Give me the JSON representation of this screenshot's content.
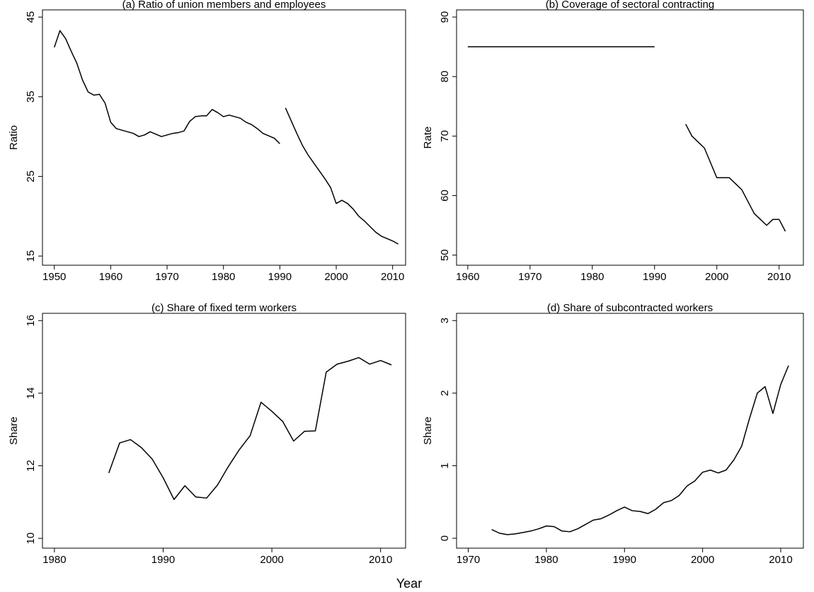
{
  "xlabel": "Year",
  "chart_data": [
    {
      "type": "line",
      "title": "(a) Ratio of union members and employees",
      "ylabel": "Ratio",
      "xlim": [
        1947.9,
        2012.3
      ],
      "ylim": [
        13.85,
        45.9
      ],
      "xticks": [
        1950,
        1960,
        1970,
        1980,
        1990,
        2000,
        2010
      ],
      "yticks": [
        15,
        25,
        35,
        45
      ],
      "series": [
        {
          "color": "#000000",
          "x": [
            1950,
            1951,
            1952,
            1953,
            1954,
            1955,
            1956,
            1957,
            1958,
            1959,
            1960,
            1961,
            1962,
            1963,
            1964,
            1965,
            1966,
            1967,
            1968,
            1969,
            1970,
            1971,
            1972,
            1973,
            1974,
            1975,
            1976,
            1977,
            1978,
            1979,
            1980,
            1981,
            1982,
            1983,
            1984,
            1985,
            1986,
            1987,
            1988,
            1989,
            1990
          ],
          "values": [
            41.2,
            43.3,
            42.3,
            40.7,
            39.2,
            37.1,
            35.6,
            35.2,
            35.3,
            34.2,
            31.8,
            31.0,
            30.8,
            30.6,
            30.4,
            30.0,
            30.2,
            30.6,
            30.3,
            30.0,
            30.2,
            30.4,
            30.5,
            30.7,
            31.9,
            32.5,
            32.6,
            32.6,
            33.4,
            33.0,
            32.5,
            32.7,
            32.5,
            32.3,
            31.8,
            31.5,
            31.0,
            30.4,
            30.1,
            29.8,
            29.1
          ]
        },
        {
          "color": "#000000",
          "x": [
            1991,
            1992,
            1993,
            1994,
            1995,
            1996,
            1997,
            1998,
            1999,
            2000,
            2001,
            2002,
            2003,
            2004,
            2005,
            2006,
            2007,
            2008,
            2009,
            2010,
            2011
          ],
          "values": [
            33.6,
            32.0,
            30.4,
            28.9,
            27.7,
            26.7,
            25.7,
            24.7,
            23.6,
            21.6,
            22.0,
            21.6,
            20.9,
            20.0,
            19.4,
            18.7,
            18.0,
            17.5,
            17.2,
            16.9,
            16.5
          ]
        }
      ]
    },
    {
      "type": "line",
      "title": "(b) Coverage of sectoral contracting",
      "ylabel": "Rate",
      "xlim": [
        1958.2,
        2013.9
      ],
      "ylim": [
        48.3,
        91.2
      ],
      "xticks": [
        1960,
        1970,
        1980,
        1990,
        2000,
        2010
      ],
      "yticks": [
        50,
        60,
        70,
        80,
        90
      ],
      "series": [
        {
          "color": "#000000",
          "x": [
            1960,
            1965,
            1970,
            1975,
            1980,
            1985,
            1990
          ],
          "values": [
            85,
            85,
            85,
            85,
            85,
            85,
            85
          ]
        },
        {
          "color": "#000000",
          "x": [
            1995,
            1996,
            1997,
            1998,
            1999,
            2000,
            2001,
            2002,
            2003,
            2004,
            2005,
            2006,
            2007,
            2008,
            2009,
            2010,
            2011
          ],
          "values": [
            72,
            70,
            69,
            68,
            65.5,
            63,
            63,
            63,
            62,
            61,
            59,
            57,
            56,
            55,
            56,
            56,
            54
          ]
        }
      ]
    },
    {
      "type": "line",
      "title": "(c) Share of fixed term workers",
      "ylabel": "Share",
      "xlim": [
        1978.9,
        2012.3
      ],
      "ylim": [
        9.73,
        16.2
      ],
      "xticks": [
        1980,
        1990,
        2000,
        2010
      ],
      "yticks": [
        10,
        12,
        14,
        16
      ],
      "series": [
        {
          "color": "#000000",
          "x": [
            1985,
            1986,
            1987,
            1988,
            1989,
            1990,
            1991,
            1992,
            1993,
            1994,
            1995,
            1996,
            1997,
            1998,
            1999,
            2000,
            2001,
            2002,
            2003,
            2004,
            2005,
            2006,
            2007,
            2008,
            2009,
            2010,
            2011
          ],
          "values": [
            11.8,
            12.63,
            12.72,
            12.5,
            12.18,
            11.67,
            11.07,
            11.45,
            11.14,
            11.11,
            11.47,
            11.98,
            12.44,
            12.83,
            13.75,
            13.5,
            13.22,
            12.68,
            12.95,
            12.96,
            14.58,
            14.8,
            14.88,
            14.98,
            14.8,
            14.9,
            14.78
          ]
        }
      ]
    },
    {
      "type": "line",
      "title": "(d) Share of subcontracted workers",
      "ylabel": "Share",
      "xlim": [
        1968.5,
        2012.9
      ],
      "ylim": [
        -0.136,
        3.1
      ],
      "xticks": [
        1970,
        1980,
        1990,
        2000,
        2010
      ],
      "yticks": [
        0,
        1,
        2,
        3
      ],
      "series": [
        {
          "color": "#000000",
          "x": [
            1973,
            1974,
            1975,
            1976,
            1977,
            1978,
            1979,
            1980,
            1981,
            1982,
            1983,
            1984,
            1985,
            1986,
            1987,
            1988,
            1989,
            1990,
            1991,
            1992,
            1993,
            1994,
            1995,
            1996,
            1997,
            1998,
            1999,
            2000,
            2001,
            2002,
            2003,
            2004,
            2005,
            2006,
            2007,
            2008,
            2009,
            2010,
            2011
          ],
          "values": [
            0.12,
            0.07,
            0.05,
            0.06,
            0.08,
            0.1,
            0.13,
            0.17,
            0.16,
            0.1,
            0.09,
            0.13,
            0.19,
            0.25,
            0.27,
            0.32,
            0.38,
            0.43,
            0.38,
            0.37,
            0.34,
            0.4,
            0.49,
            0.52,
            0.59,
            0.72,
            0.79,
            0.91,
            0.94,
            0.9,
            0.94,
            1.08,
            1.27,
            1.65,
            2.0,
            2.09,
            1.72,
            2.12,
            2.38
          ]
        }
      ]
    }
  ]
}
